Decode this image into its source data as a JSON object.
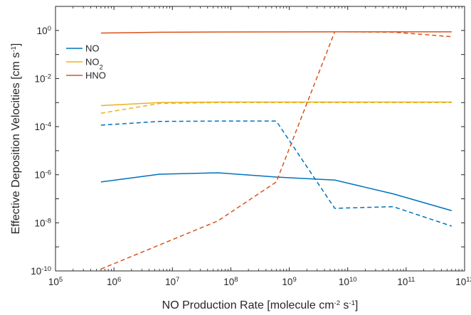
{
  "chart_data": {
    "type": "line",
    "title": "",
    "xlabel": {
      "parts": [
        {
          "text": "NO Production Rate [molecule cm"
        },
        {
          "text": "-2",
          "sup": true
        },
        {
          "text": " s"
        },
        {
          "text": "-1",
          "sup": true
        },
        {
          "text": "]"
        }
      ]
    },
    "ylabel": {
      "parts": [
        {
          "text": "Effective Deposition Velocities [cm s"
        },
        {
          "text": "-1",
          "sup": true
        },
        {
          "text": "]"
        }
      ]
    },
    "xscale": "log",
    "yscale": "log",
    "xlim": [
      100000,
      1000000000000
    ],
    "ylim": [
      1e-10,
      10
    ],
    "grid": false,
    "legend_position": "top-left",
    "x_ticks": [
      {
        "base": "10",
        "exp": "5"
      },
      {
        "base": "10",
        "exp": "6"
      },
      {
        "base": "10",
        "exp": "7"
      },
      {
        "base": "10",
        "exp": "8"
      },
      {
        "base": "10",
        "exp": "9"
      },
      {
        "base": "10",
        "exp": "10"
      },
      {
        "base": "10",
        "exp": "11"
      },
      {
        "base": "10",
        "exp": "12"
      }
    ],
    "y_ticks": [
      {
        "base": "10",
        "exp": "-10"
      },
      {
        "base": "10",
        "exp": "-8"
      },
      {
        "base": "10",
        "exp": "-6"
      },
      {
        "base": "10",
        "exp": "-4"
      },
      {
        "base": "10",
        "exp": "-2"
      },
      {
        "base": "10",
        "exp": "0"
      }
    ],
    "x": [
      600000,
      6000000,
      60000000,
      600000000,
      6000000000,
      60000000000,
      600000000000
    ],
    "series": [
      {
        "name": "NO",
        "legend_parts": [
          {
            "text": "NO"
          }
        ],
        "color": "#0072BD",
        "style": "solid",
        "values": [
          5e-07,
          1.05e-06,
          1.2e-06,
          8e-07,
          6e-07,
          1.6e-07,
          3.2e-08
        ]
      },
      {
        "name": "NO2",
        "legend_parts": [
          {
            "text": "NO"
          },
          {
            "text": "2",
            "sub": true
          }
        ],
        "color": "#EDB120",
        "style": "solid",
        "values": [
          0.00075,
          0.001,
          0.00105,
          0.00105,
          0.00105,
          0.00105,
          0.00105
        ]
      },
      {
        "name": "HNO",
        "legend_parts": [
          {
            "text": "HNO"
          }
        ],
        "color": "#D95319",
        "style": "solid",
        "values": [
          0.78,
          0.84,
          0.86,
          0.87,
          0.88,
          0.88,
          0.88
        ]
      },
      {
        "name": "NO",
        "legend": false,
        "color": "#0072BD",
        "style": "dashed",
        "values": [
          0.000115,
          0.000165,
          0.00017,
          0.00017,
          4e-08,
          4.7e-08,
          7.3e-09
        ]
      },
      {
        "name": "NO2",
        "legend": false,
        "color": "#EDB120",
        "style": "dashed",
        "values": [
          0.00036,
          0.00092,
          0.001,
          0.001,
          0.001,
          0.001,
          0.001
        ]
      },
      {
        "name": "HNO",
        "legend": false,
        "color": "#D95319",
        "style": "dashed",
        "values": [
          1.2e-10,
          1.2e-09,
          1.2e-08,
          5e-07,
          0.88,
          0.85,
          0.55
        ]
      }
    ]
  }
}
